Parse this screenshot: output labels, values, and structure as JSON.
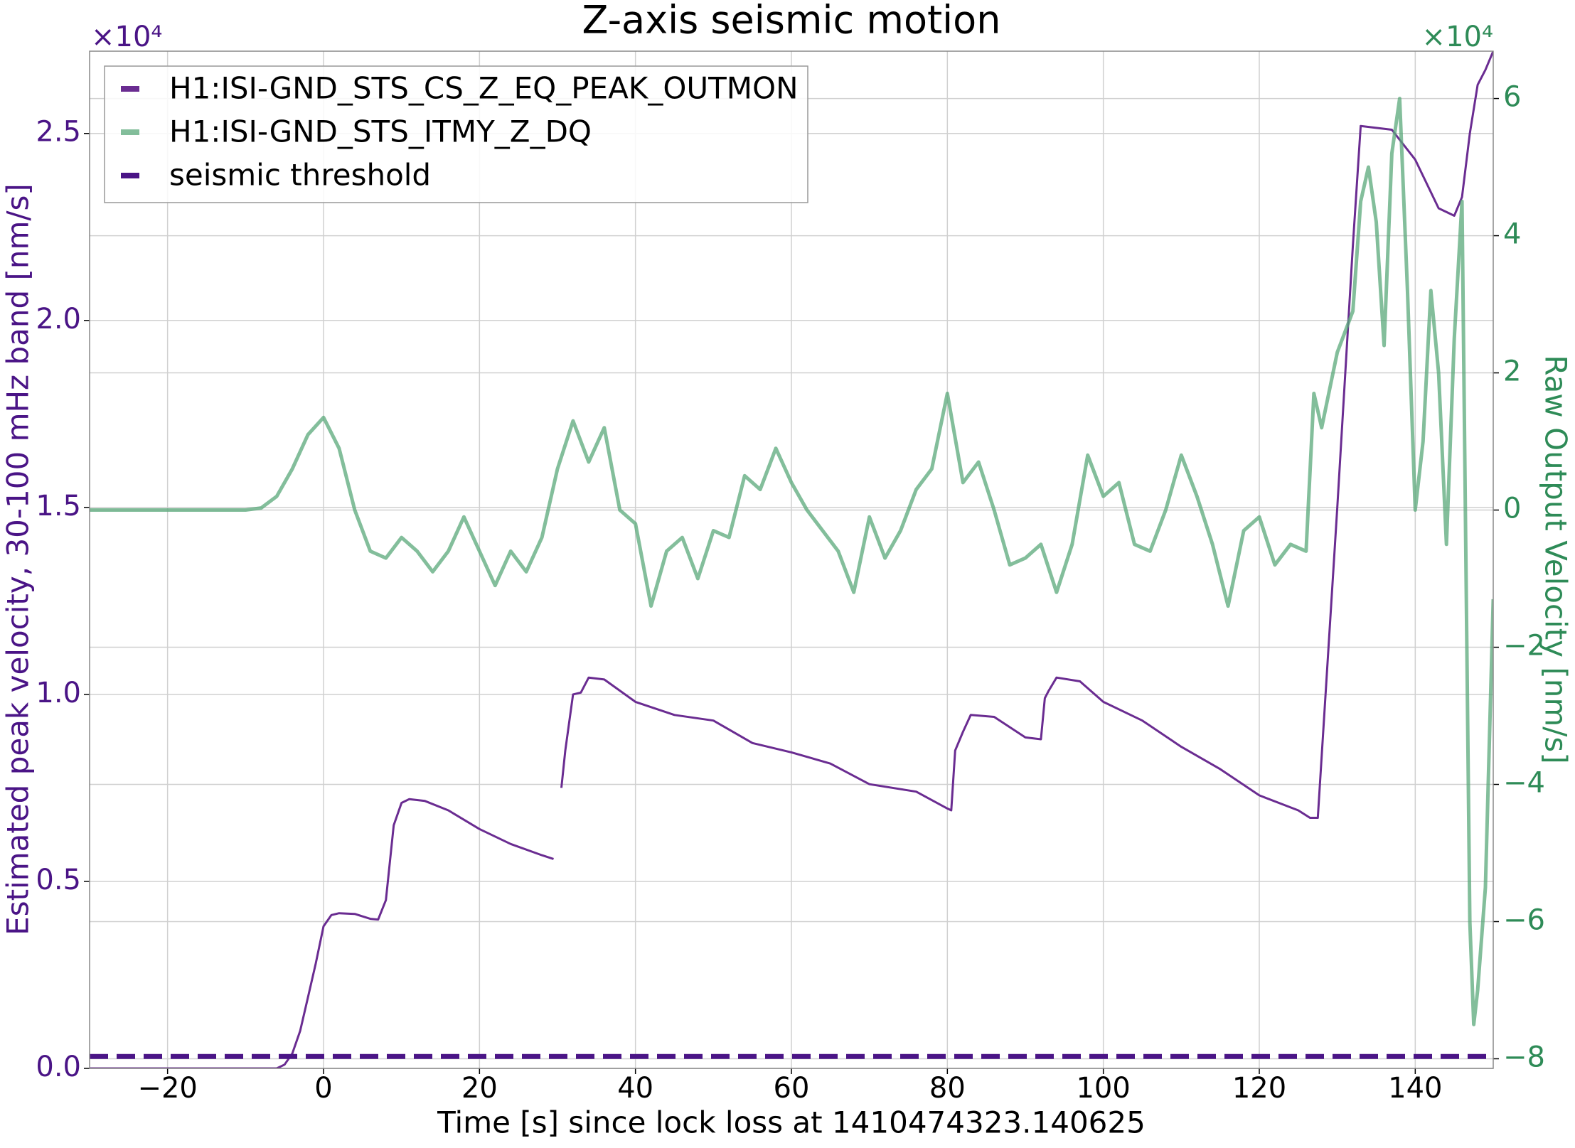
{
  "chart_data": {
    "type": "line",
    "title": "Z-axis seismic motion",
    "xlabel": "Time [s] since lock loss at 1410474323.140625",
    "ylabel": "Estimated peak velocity, 30-100 mHz band [nm/s]",
    "y2label": "Raw Output Velocity [nm/s]",
    "y_offset_label": "×10⁴",
    "y2_offset_label": "×10⁴",
    "xlim": [
      -30,
      150
    ],
    "ylim": [
      0,
      27200
    ],
    "y2lim": [
      -81400,
      66900
    ],
    "xticks": [
      {
        "value": -20,
        "label": "−20"
      },
      0,
      20,
      40,
      60,
      80,
      100,
      120,
      140
    ],
    "yticks": [
      {
        "value": 0,
        "label": "0.0"
      },
      {
        "value": 5000,
        "label": "0.5"
      },
      {
        "value": 10000,
        "label": "1.0"
      },
      {
        "value": 15000,
        "label": "1.5"
      },
      {
        "value": 20000,
        "label": "2.0"
      },
      {
        "value": 25000,
        "label": "2.5"
      }
    ],
    "y2ticks": [
      {
        "value": -80000,
        "label": "−8"
      },
      {
        "value": -60000,
        "label": "−6"
      },
      {
        "value": -40000,
        "label": "−4"
      },
      {
        "value": -20000,
        "label": "−2"
      },
      {
        "value": 0,
        "label": "0"
      },
      {
        "value": 20000,
        "label": "2"
      },
      {
        "value": 40000,
        "label": "4"
      },
      {
        "value": 60000,
        "label": "6"
      }
    ],
    "grid": true,
    "legend": "upper left",
    "y_color": "#4a1486",
    "y2_color": "#2e8b57",
    "series": [
      {
        "name": "H1:ISI-GND_STS_CS_Z_EQ_PEAK_OUTMON",
        "color": "#6a2c91",
        "linestyle": "solid",
        "opacity": 1,
        "x": [
          -30,
          -6,
          -5,
          -4,
          -3,
          -2,
          -1,
          0,
          1,
          2,
          4,
          6,
          7,
          8,
          9,
          10,
          11,
          13,
          16,
          20,
          24,
          28,
          29.5,
          30,
          30.5,
          31,
          32,
          33,
          34,
          36,
          40,
          45,
          50,
          55,
          60,
          65,
          70,
          76,
          80,
          80.5,
          81,
          82,
          83,
          86,
          90,
          92,
          92.5,
          93,
          94,
          97,
          100,
          105,
          110,
          115,
          120,
          125,
          126.5,
          127.5,
          130,
          132,
          133,
          137,
          140,
          143,
          145,
          146,
          147,
          148,
          149,
          150
        ],
        "values": [
          0,
          0,
          100,
          400,
          1000,
          1900,
          2800,
          3800,
          4100,
          4150,
          4130,
          4000,
          3980,
          4500,
          6500,
          7100,
          7200,
          7150,
          6900,
          6400,
          6000,
          5700,
          5600,
          null,
          7500,
          8500,
          10000,
          10050,
          10450,
          10400,
          9800,
          9450,
          9300,
          8700,
          8450,
          8150,
          7600,
          7400,
          6950,
          6900,
          8500,
          9000,
          9450,
          9400,
          8850,
          8800,
          9900,
          10100,
          10450,
          10350,
          9800,
          9300,
          8600,
          8000,
          7300,
          6900,
          6700,
          6700,
          15000,
          22000,
          25200,
          25100,
          24300,
          23000,
          22800,
          23300,
          25000,
          26300,
          26700,
          27200
        ]
      },
      {
        "name": "H1:ISI-GND_STS_ITMY_Z_DQ",
        "color": "#5aa87a",
        "linestyle": "solid",
        "opacity": 0.75,
        "axis": "y2",
        "x": [
          -30,
          -26,
          -22,
          -18,
          -14,
          -10,
          -8,
          -6,
          -4,
          -2,
          0,
          2,
          4,
          6,
          8,
          10,
          12,
          14,
          16,
          18,
          20,
          22,
          24,
          26,
          28,
          30,
          32,
          34,
          36,
          38,
          40,
          42,
          44,
          46,
          48,
          50,
          52,
          54,
          56,
          58,
          60,
          62,
          64,
          66,
          68,
          70,
          72,
          74,
          76,
          78,
          80,
          82,
          84,
          86,
          88,
          90,
          92,
          94,
          96,
          98,
          100,
          102,
          104,
          106,
          108,
          110,
          112,
          114,
          116,
          118,
          120,
          122,
          124,
          126,
          127,
          128,
          130,
          132,
          133,
          134,
          135,
          136,
          137,
          138,
          139,
          140,
          141,
          142,
          143,
          144,
          145,
          146,
          147,
          147.5,
          148,
          149,
          150
        ],
        "values": [
          0,
          0,
          0,
          0,
          0,
          0,
          300,
          2000,
          6000,
          11000,
          13500,
          9000,
          0,
          -6000,
          -7000,
          -4000,
          -6000,
          -9000,
          -6000,
          -1000,
          -6000,
          -11000,
          -6000,
          -9000,
          -4000,
          6000,
          13000,
          7000,
          12000,
          0,
          -2000,
          -14000,
          -6000,
          -4000,
          -10000,
          -3000,
          -4000,
          5000,
          3000,
          9000,
          4000,
          0,
          -3000,
          -6000,
          -12000,
          -1000,
          -7000,
          -3000,
          3000,
          6000,
          17000,
          4000,
          7000,
          0,
          -8000,
          -7000,
          -5000,
          -12000,
          -5000,
          8000,
          2000,
          4000,
          -5000,
          -6000,
          0,
          8000,
          2000,
          -5000,
          -14000,
          -3000,
          -1000,
          -8000,
          -5000,
          -6000,
          17000,
          12000,
          23000,
          29000,
          45000,
          50000,
          42000,
          24000,
          52000,
          60000,
          32000,
          0,
          10000,
          32000,
          20000,
          -5000,
          25000,
          45000,
          -60000,
          -75000,
          -70000,
          -55000,
          -13000
        ]
      },
      {
        "name": "seismic threshold",
        "color": "#4a1486",
        "linestyle": "dashed",
        "opacity": 1,
        "x": [
          -30,
          150
        ],
        "values": [
          320,
          320
        ]
      }
    ]
  }
}
